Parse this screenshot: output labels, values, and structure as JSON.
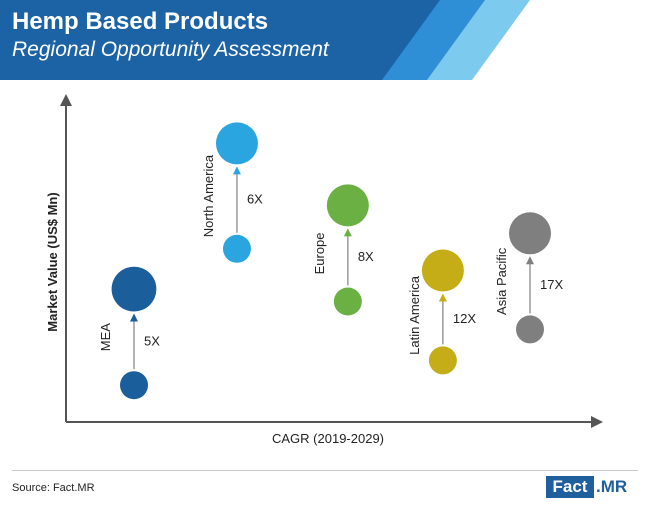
{
  "header": {
    "title": "Hemp Based Products",
    "subtitle": "Regional Opportunity Assessment"
  },
  "colors": {
    "banner_primary": "#1c63a6",
    "banner_accent_1": "#2f8fd6",
    "banner_accent_2": "#7ccbee",
    "axis": "#555555",
    "connector": "#9a9a9a"
  },
  "chart_data": {
    "type": "scatter",
    "xlabel": "CAGR (2019-2029)",
    "ylabel": "Market Value (US$ Mn)",
    "grid": false,
    "legend": "none",
    "ticks_shown": false,
    "xlim": [
      0,
      6
    ],
    "ylim": [
      0,
      10
    ],
    "series": [
      {
        "name": "MEA",
        "x": 1.0,
        "y_start": 0.8,
        "y_end": 3.9,
        "growth_label": "5X",
        "color": "#1a5f9c",
        "size_start": 1.0,
        "size_end": 1.6
      },
      {
        "name": "North America",
        "x": 2.3,
        "y_start": 5.2,
        "y_end": 8.6,
        "growth_label": "6X",
        "color": "#2aa5e0",
        "size_start": 1.0,
        "size_end": 1.5
      },
      {
        "name": "Europe",
        "x": 3.7,
        "y_start": 3.5,
        "y_end": 6.6,
        "growth_label": "8X",
        "color": "#6ab043",
        "size_start": 1.0,
        "size_end": 1.5
      },
      {
        "name": "Latin America",
        "x": 4.9,
        "y_start": 1.6,
        "y_end": 4.5,
        "growth_label": "12X",
        "color": "#c4ad16",
        "size_start": 1.0,
        "size_end": 1.5
      },
      {
        "name": "Asia Pacific",
        "x": 6.0,
        "y_start": 2.6,
        "y_end": 5.7,
        "growth_label": "17X",
        "color": "#7f7f7f",
        "size_start": 1.0,
        "size_end": 1.5
      }
    ]
  },
  "footer": {
    "source": "Source: Fact.MR",
    "brand_box": "Fact",
    "brand_rest": ".MR"
  }
}
